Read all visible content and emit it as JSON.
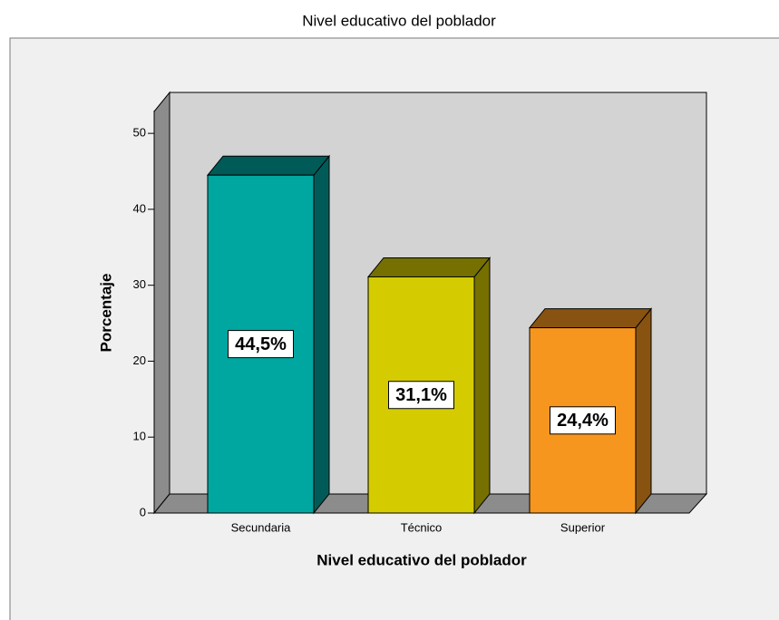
{
  "chart_data": {
    "type": "bar3d",
    "title": "Nivel educativo del poblador",
    "x_label": "Nivel educativo del poblador",
    "y_label": "Porcentaje",
    "categories": [
      "Secundaria",
      "Técnico",
      "Superior"
    ],
    "values": [
      44.5,
      31.1,
      24.4
    ],
    "value_labels": [
      "44,5%",
      "31,1%",
      "24,4%"
    ],
    "colors": [
      "#00a6a0",
      "#d4cc00",
      "#f7961e"
    ],
    "ylim": [
      0,
      53
    ],
    "yticks": [
      0,
      10,
      20,
      30,
      40,
      50
    ]
  }
}
